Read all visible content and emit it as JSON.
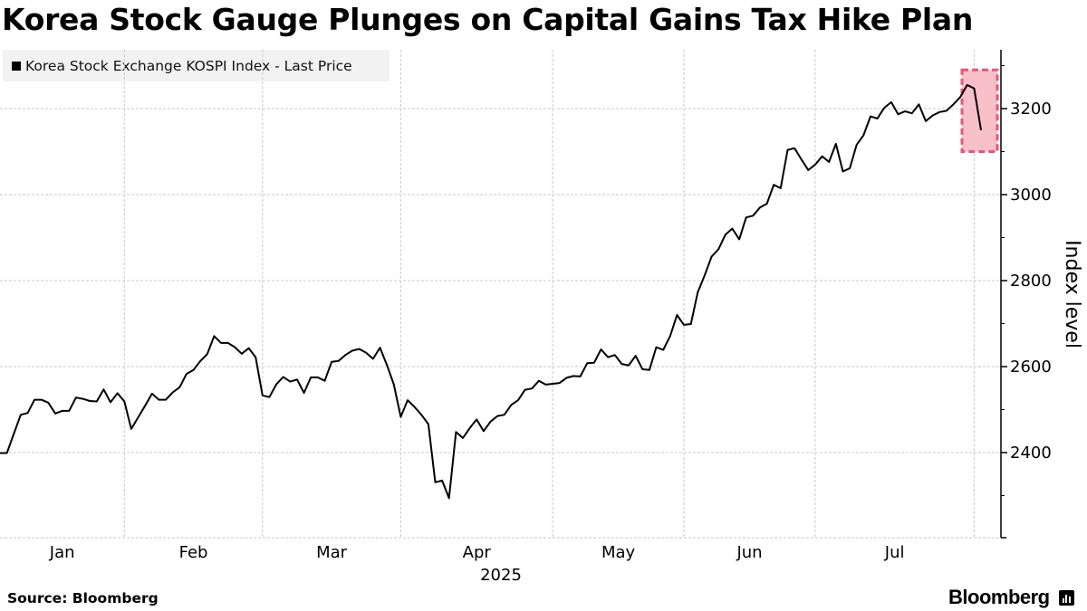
{
  "title": "Korea Stock Gauge Plunges on Capital Gains Tax Hike Plan",
  "source": "Source:  Bloomberg",
  "logo": "Bloomberg",
  "chart_data": {
    "type": "line",
    "title": "Korea Stock Gauge Plunges on Capital Gains Tax Hike Plan",
    "legend": {
      "position": "top-left",
      "entries": [
        "Korea Stock Exchange KOSPI Index - Last Price"
      ]
    },
    "ylabel": "Index level",
    "xlabel": "",
    "x_year_label": "2025",
    "y_axis_side": "right",
    "ylim": [
      2200,
      3340
    ],
    "yticks": [
      2400,
      2600,
      2800,
      3000,
      3200
    ],
    "ytick_labels": [
      "2400",
      "2600",
      "2800",
      "3000",
      "3200"
    ],
    "grid": true,
    "months": [
      {
        "label": "Jan",
        "first_index": 0,
        "last_index": 18
      },
      {
        "label": "Feb",
        "first_index": 18,
        "last_index": 38
      },
      {
        "label": "Mar",
        "first_index": 38,
        "last_index": 58
      },
      {
        "label": "Apr",
        "first_index": 58,
        "last_index": 80
      },
      {
        "label": "May",
        "first_index": 80,
        "last_index": 99
      },
      {
        "label": "Jun",
        "first_index": 99,
        "last_index": 118
      },
      {
        "label": "Jul",
        "first_index": 118,
        "last_index": 141
      }
    ],
    "highlight": {
      "from": "2025-07-30",
      "to": "2025-08-01",
      "value_range": [
        3100,
        3290
      ],
      "color": "#f9b9c3",
      "border_color": "#e8557a"
    },
    "line_color": "#000000",
    "series": [
      {
        "name": "Korea Stock Exchange KOSPI Index - Last Price",
        "dates": [
          "2024-12-30",
          "2025-01-02",
          "2025-01-03",
          "2025-01-06",
          "2025-01-07",
          "2025-01-08",
          "2025-01-09",
          "2025-01-10",
          "2025-01-13",
          "2025-01-14",
          "2025-01-15",
          "2025-01-16",
          "2025-01-17",
          "2025-01-20",
          "2025-01-21",
          "2025-01-22",
          "2025-01-23",
          "2025-01-24",
          "2025-01-31",
          "2025-02-03",
          "2025-02-04",
          "2025-02-05",
          "2025-02-06",
          "2025-02-07",
          "2025-02-10",
          "2025-02-11",
          "2025-02-12",
          "2025-02-13",
          "2025-02-14",
          "2025-02-17",
          "2025-02-18",
          "2025-02-19",
          "2025-02-20",
          "2025-02-21",
          "2025-02-24",
          "2025-02-25",
          "2025-02-26",
          "2025-02-27",
          "2025-02-28",
          "2025-03-04",
          "2025-03-05",
          "2025-03-06",
          "2025-03-07",
          "2025-03-10",
          "2025-03-11",
          "2025-03-12",
          "2025-03-13",
          "2025-03-14",
          "2025-03-17",
          "2025-03-18",
          "2025-03-19",
          "2025-03-20",
          "2025-03-21",
          "2025-03-24",
          "2025-03-25",
          "2025-03-26",
          "2025-03-27",
          "2025-03-28",
          "2025-03-31",
          "2025-04-01",
          "2025-04-02",
          "2025-04-03",
          "2025-04-04",
          "2025-04-07",
          "2025-04-08",
          "2025-04-09",
          "2025-04-10",
          "2025-04-11",
          "2025-04-14",
          "2025-04-15",
          "2025-04-16",
          "2025-04-17",
          "2025-04-18",
          "2025-04-21",
          "2025-04-22",
          "2025-04-23",
          "2025-04-24",
          "2025-04-25",
          "2025-04-28",
          "2025-04-29",
          "2025-04-30",
          "2025-05-02",
          "2025-05-07",
          "2025-05-08",
          "2025-05-09",
          "2025-05-12",
          "2025-05-13",
          "2025-05-14",
          "2025-05-15",
          "2025-05-16",
          "2025-05-19",
          "2025-05-20",
          "2025-05-21",
          "2025-05-22",
          "2025-05-23",
          "2025-05-26",
          "2025-05-27",
          "2025-05-28",
          "2025-05-29",
          "2025-05-30",
          "2025-06-02",
          "2025-06-04",
          "2025-06-05",
          "2025-06-09",
          "2025-06-10",
          "2025-06-11",
          "2025-06-12",
          "2025-06-13",
          "2025-06-16",
          "2025-06-17",
          "2025-06-18",
          "2025-06-19",
          "2025-06-20",
          "2025-06-23",
          "2025-06-24",
          "2025-06-25",
          "2025-06-26",
          "2025-06-27",
          "2025-06-30",
          "2025-07-01",
          "2025-07-02",
          "2025-07-03",
          "2025-07-04",
          "2025-07-07",
          "2025-07-08",
          "2025-07-09",
          "2025-07-10",
          "2025-07-11",
          "2025-07-14",
          "2025-07-15",
          "2025-07-16",
          "2025-07-17",
          "2025-07-18",
          "2025-07-21",
          "2025-07-22",
          "2025-07-23",
          "2025-07-24",
          "2025-07-25",
          "2025-07-28",
          "2025-07-29",
          "2025-07-30",
          "2025-07-31",
          "2025-08-01"
        ],
        "values": [
          2399,
          2399,
          2444,
          2488,
          2492,
          2523,
          2523,
          2516,
          2491,
          2497,
          2497,
          2528,
          2525,
          2520,
          2519,
          2547,
          2517,
          2538,
          2519,
          2455,
          2482,
          2509,
          2537,
          2523,
          2523,
          2540,
          2552,
          2583,
          2592,
          2613,
          2629,
          2671,
          2655,
          2655,
          2645,
          2630,
          2643,
          2622,
          2533,
          2529,
          2559,
          2576,
          2565,
          2570,
          2539,
          2575,
          2575,
          2567,
          2611,
          2613,
          2627,
          2637,
          2641,
          2632,
          2618,
          2644,
          2604,
          2559,
          2483,
          2522,
          2506,
          2488,
          2466,
          2331,
          2335,
          2294,
          2448,
          2434,
          2457,
          2477,
          2450,
          2472,
          2485,
          2488,
          2511,
          2522,
          2546,
          2549,
          2567,
          2558,
          2560,
          2562,
          2574,
          2578,
          2577,
          2608,
          2609,
          2640,
          2622,
          2627,
          2606,
          2603,
          2625,
          2594,
          2592,
          2645,
          2639,
          2671,
          2720,
          2697,
          2699,
          2773,
          2812,
          2856,
          2873,
          2907,
          2921,
          2896,
          2947,
          2951,
          2970,
          2979,
          3023,
          3015,
          3104,
          3108,
          3082,
          3057,
          3070,
          3089,
          3076,
          3118,
          3054,
          3061,
          3116,
          3138,
          3182,
          3177,
          3202,
          3215,
          3187,
          3194,
          3189,
          3210,
          3171,
          3184,
          3192,
          3195,
          3210,
          3227,
          3255,
          3247,
          3150
        ]
      }
    ]
  }
}
